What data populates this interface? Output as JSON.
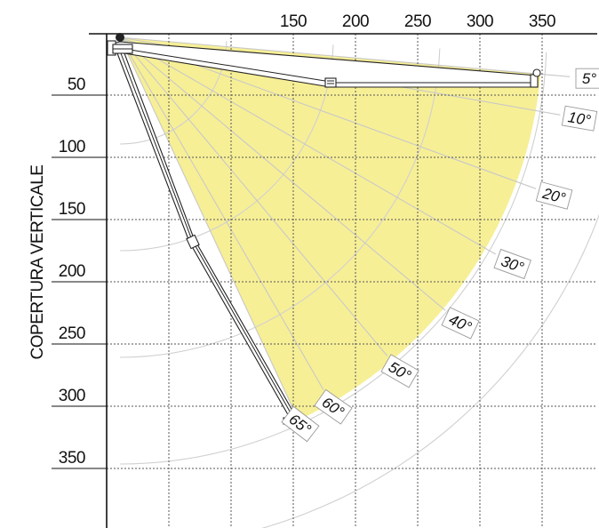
{
  "axes": {
    "ylabel": "COPERTURA VERTICALE",
    "x_ticks": [
      "150",
      "200",
      "250",
      "300",
      "350"
    ],
    "y_ticks": [
      "50",
      "100",
      "150",
      "200",
      "250",
      "300",
      "350"
    ]
  },
  "angles": [
    {
      "label": "5°",
      "deg": 5
    },
    {
      "label": "10°",
      "deg": 10
    },
    {
      "label": "20°",
      "deg": 20
    },
    {
      "label": "30°",
      "deg": 30
    },
    {
      "label": "40°",
      "deg": 40
    },
    {
      "label": "50°",
      "deg": 50
    },
    {
      "label": "60°",
      "deg": 60
    },
    {
      "label": "65°",
      "deg": 65
    }
  ],
  "colors": {
    "coverage_fill": "#f7ef96",
    "grid": "#555555",
    "axis": "#111111"
  }
}
